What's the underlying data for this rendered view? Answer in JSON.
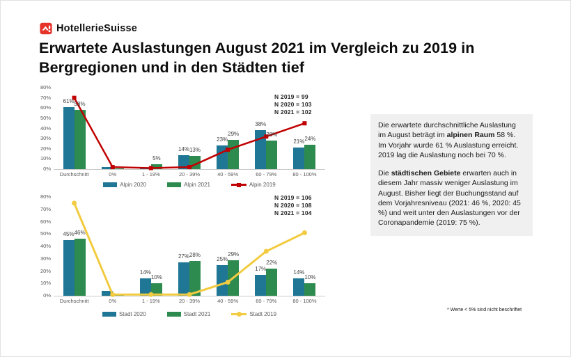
{
  "header": {
    "brand": "HotellerieSuisse",
    "title": "Erwartete Auslastungen August 2021 im Vergleich zu 2019 in Bergregionen und in den Städten tief"
  },
  "colors": {
    "blue": "#1f7795",
    "green": "#2e8b50",
    "red": "#c00000",
    "yellow": "#f2cb40",
    "brand_red": "#e5332a",
    "infobox_bg": "#f0f0f0",
    "axis_text": "#595959",
    "label_text": "#3f3f3f"
  },
  "chart_data": [
    {
      "type": "bar",
      "region": "Alpin",
      "categories": [
        "Durchschnitt",
        "0%",
        "1 - 19%",
        "20 - 39%",
        "40 - 59%",
        "60 - 79%",
        "80 - 100%"
      ],
      "ylim": [
        0,
        80
      ],
      "ytick_step": 10,
      "grid": false,
      "legend_position": "bottom",
      "series": [
        {
          "name": "Alpin 2020",
          "kind": "bar",
          "color": "blue",
          "values": [
            61,
            2,
            1,
            14,
            23,
            38,
            21
          ],
          "labels": [
            "61%",
            "",
            "",
            "14%",
            "23%",
            "38%",
            "21%"
          ]
        },
        {
          "name": "Alpin 2021",
          "kind": "bar",
          "color": "green",
          "values": [
            58,
            1,
            5,
            13,
            29,
            28,
            24
          ],
          "labels": [
            "58%",
            "",
            "5%",
            "13%",
            "29%",
            "28%",
            "24%"
          ]
        },
        {
          "name": "Alpin 2019",
          "kind": "line",
          "color": "red",
          "values": [
            70,
            2,
            1,
            2,
            19,
            32,
            45
          ],
          "labels": [
            "",
            "",
            "",
            "",
            "",
            "",
            ""
          ]
        }
      ],
      "n_labels": [
        "N 2019 = 99",
        "N 2020 = 103",
        "N 2021 = 102"
      ]
    },
    {
      "type": "bar",
      "region": "Stadt",
      "categories": [
        "Durchschnitt",
        "0%",
        "1 - 19%",
        "20 - 39%",
        "40 - 59%",
        "60 - 79%",
        "80 - 100%"
      ],
      "ylim": [
        0,
        80
      ],
      "ytick_step": 10,
      "grid": false,
      "legend_position": "bottom",
      "series": [
        {
          "name": "Stadt 2020",
          "kind": "bar",
          "color": "blue",
          "values": [
            45,
            4,
            14,
            27,
            25,
            17,
            14
          ],
          "labels": [
            "45%",
            "",
            "14%",
            "27%",
            "25%",
            "17%",
            "14%"
          ]
        },
        {
          "name": "Stadt 2021",
          "kind": "bar",
          "color": "green",
          "values": [
            46,
            1,
            10,
            28,
            29,
            22,
            10
          ],
          "labels": [
            "46%",
            "",
            "10%",
            "28%",
            "29%",
            "22%",
            "10%"
          ]
        },
        {
          "name": "Stadt 2019",
          "kind": "line",
          "color": "yellow",
          "values": [
            75,
            1,
            1,
            1,
            11,
            36,
            51
          ],
          "labels": [
            "",
            "",
            "",
            "",
            "",
            "",
            ""
          ]
        }
      ],
      "n_labels": [
        "N 2019 = 106",
        "N 2020 = 108",
        "N 2021 = 104"
      ]
    }
  ],
  "infobox": {
    "paragraphs": [
      {
        "segments": [
          {
            "text": "Die erwartete durchschnittliche Auslastung im August beträgt im ",
            "bold": false
          },
          {
            "text": "alpinen Raum",
            "bold": true
          },
          {
            "text": " 58 %. Im Vorjahr wurde 61 % Auslastung erreicht. 2019 lag die Auslastung noch bei 70 %.",
            "bold": false
          }
        ]
      },
      {
        "segments": [
          {
            "text": "Die ",
            "bold": false
          },
          {
            "text": "städtischen Gebiete",
            "bold": true
          },
          {
            "text": " erwarten auch in diesem Jahr massiv weniger Auslastung im August. Bisher liegt der Buchungsstand auf dem Vorjahresniveau (2021: 46 %, 2020: 45 %) und weit unter den Auslastungen vor der Coronapandemie (2019: 75 %).",
            "bold": false
          }
        ]
      }
    ]
  },
  "footnote": "* Werte < 5% sind nicht beschriftet"
}
